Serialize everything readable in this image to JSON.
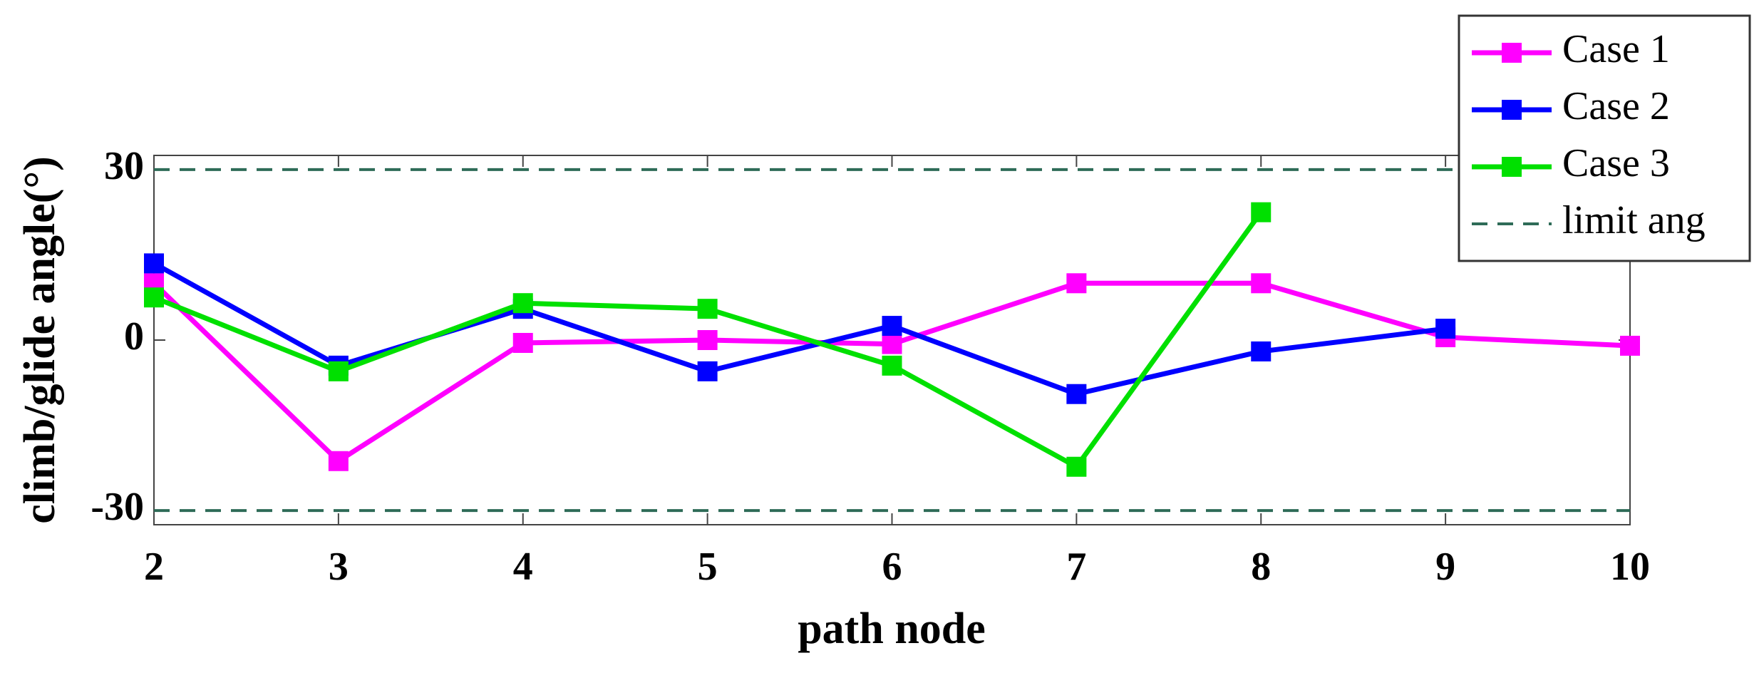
{
  "chart_data": {
    "type": "line",
    "xlabel": "path node",
    "ylabel": "climb/glide angle(°)",
    "x": [
      2,
      3,
      4,
      5,
      6,
      7,
      8,
      9,
      10
    ],
    "series": [
      {
        "name": "Case 1",
        "color": "#ff00ff",
        "values": [
          10,
          -21.3,
          -0.5,
          0,
          -0.7,
          10,
          10,
          0.5,
          -1
        ]
      },
      {
        "name": "Case 2",
        "color": "#0000ff",
        "values": [
          13.5,
          -4.5,
          5.5,
          -5.5,
          2.5,
          -9.5,
          -2,
          2,
          null
        ]
      },
      {
        "name": "Case 3",
        "color": "#00e000",
        "values": [
          7.5,
          -5.5,
          6.5,
          5.5,
          -4.5,
          -22.3,
          22.5,
          null,
          null
        ]
      }
    ],
    "limits": {
      "name": "limit ang",
      "color": "#2e6b57",
      "values": [
        30,
        -30
      ]
    },
    "xlim": [
      2,
      10
    ],
    "xticks": [
      2,
      3,
      4,
      5,
      6,
      7,
      8,
      9,
      10
    ],
    "ylim": [
      -32.5,
      32.5
    ],
    "yticks": [
      -30,
      0,
      30
    ],
    "legend": "upper right"
  }
}
